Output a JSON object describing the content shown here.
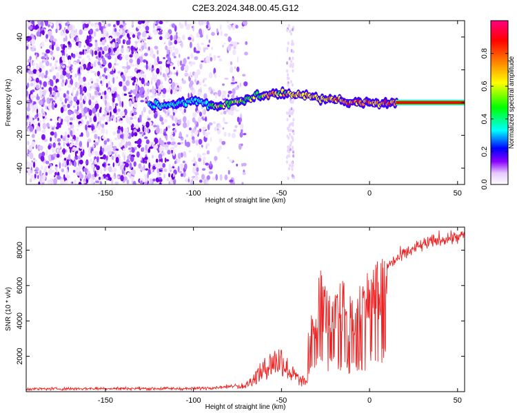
{
  "title": "C2E3.2024.348.00.45.G12",
  "chart_data": [
    {
      "type": "heatmap",
      "xlabel": "Height of straight line (km)",
      "ylabel": "Frequency (Hz)",
      "xlim": [
        -195,
        54
      ],
      "ylim": [
        -50,
        50
      ],
      "x_ticks": [
        -150,
        -100,
        -50,
        0,
        50
      ],
      "y_ticks": [
        -40,
        -20,
        0,
        20,
        40
      ],
      "colorbar": {
        "label": "Normalized spectral amplitude",
        "range": [
          0,
          1
        ],
        "ticks": [
          0.0,
          0.2,
          0.4,
          0.6,
          0.8
        ],
        "colors": [
          "#ffffff",
          "#e6c8ff",
          "#8a00ff",
          "#0000ff",
          "#00ffff",
          "#00ff00",
          "#ffff00",
          "#ff8000",
          "#ff0000",
          "#ff0080"
        ]
      },
      "frequency_trace": [
        [
          -123,
          -1.5
        ],
        [
          -115,
          -1.0
        ],
        [
          -110,
          -1.5
        ],
        [
          -100,
          1.0
        ],
        [
          -92,
          -1.0
        ],
        [
          -85,
          -2.0
        ],
        [
          -75,
          1.0
        ],
        [
          -65,
          3.5
        ],
        [
          -55,
          5.0
        ],
        [
          -48,
          6.0
        ],
        [
          -40,
          4.5
        ],
        [
          -30,
          3.0
        ],
        [
          -20,
          1.5
        ],
        [
          -10,
          0.5
        ],
        [
          0,
          -0.5
        ],
        [
          10,
          -0.5
        ],
        [
          15,
          0.0
        ],
        [
          20,
          0.0
        ],
        [
          30,
          0.0
        ],
        [
          40,
          0.0
        ],
        [
          54,
          0.0
        ]
      ]
    },
    {
      "type": "line",
      "xlabel": "Height of straight line (km)",
      "ylabel": "SNR (10 * v/v)",
      "xlim": [
        -195,
        54
      ],
      "ylim": [
        0,
        9300
      ],
      "x_ticks": [
        -150,
        -100,
        -50,
        0,
        50
      ],
      "y_ticks": [
        2000,
        4000,
        6000,
        8000
      ],
      "series_color": "#ee2222",
      "envelope": [
        [
          -195,
          150
        ],
        [
          -150,
          180
        ],
        [
          -100,
          170
        ],
        [
          -80,
          280
        ],
        [
          -70,
          500
        ],
        [
          -62,
          1500
        ],
        [
          -55,
          2300
        ],
        [
          -50,
          2500
        ],
        [
          -45,
          1500
        ],
        [
          -38,
          700
        ],
        [
          -35,
          3000
        ],
        [
          -28,
          6500
        ],
        [
          -22,
          4800
        ],
        [
          -15,
          5900
        ],
        [
          -10,
          4700
        ],
        [
          -5,
          5800
        ],
        [
          0,
          6500
        ],
        [
          5,
          6800
        ],
        [
          10,
          7100
        ],
        [
          20,
          7800
        ],
        [
          30,
          8300
        ],
        [
          40,
          8600
        ],
        [
          54,
          8800
        ]
      ]
    }
  ]
}
